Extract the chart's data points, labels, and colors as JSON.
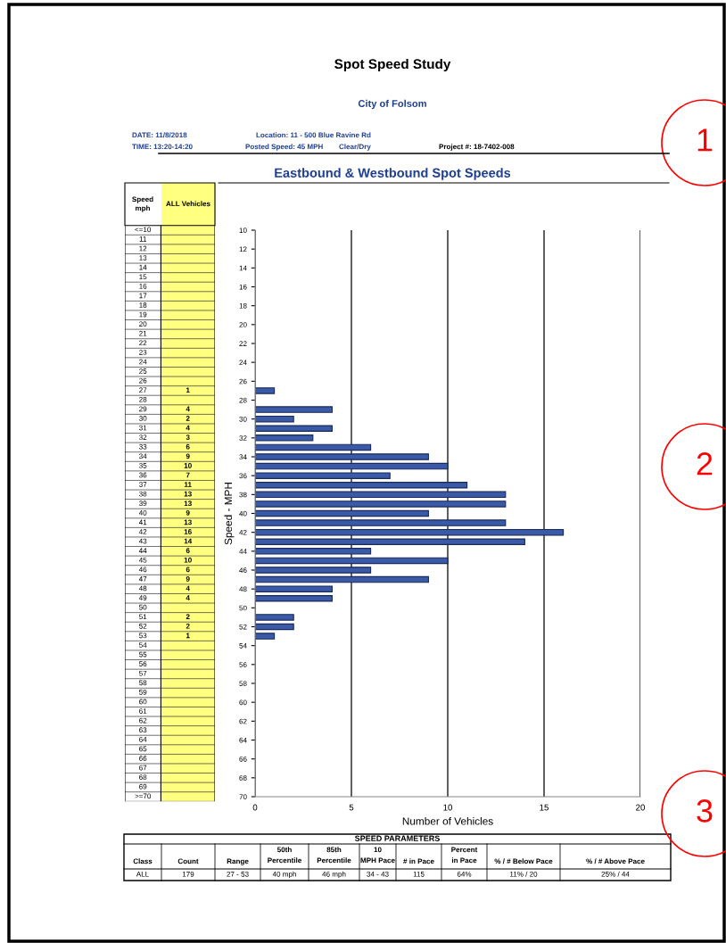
{
  "chart_data": {
    "type": "bar",
    "orientation": "horizontal",
    "title": "Spot Speed Study",
    "subtitle": "Eastbound & Westbound Spot Speeds",
    "xlabel": "Number of Vehicles",
    "ylabel": "Speed - MPH",
    "x": [
      27,
      28,
      29,
      30,
      31,
      32,
      33,
      34,
      35,
      36,
      37,
      38,
      39,
      40,
      41,
      42,
      43,
      44,
      45,
      46,
      47,
      48,
      49,
      50,
      51,
      52,
      53
    ],
    "values": [
      1,
      null,
      4,
      2,
      4,
      3,
      6,
      9,
      10,
      7,
      11,
      13,
      13,
      9,
      13,
      16,
      14,
      6,
      10,
      6,
      9,
      4,
      4,
      null,
      2,
      2,
      1
    ],
    "color": "#3a5aa8",
    "xlim": [
      0,
      20
    ],
    "xticks": [
      0,
      5,
      10,
      15,
      20
    ],
    "ylim": [
      70,
      10
    ],
    "yticks": [
      10,
      12,
      14,
      16,
      18,
      20,
      22,
      24,
      26,
      28,
      30,
      32,
      34,
      36,
      38,
      40,
      42,
      44,
      46,
      48,
      50,
      52,
      54,
      56,
      58,
      60,
      62,
      64,
      66,
      68,
      70
    ],
    "grid": "x",
    "annotations": [
      "City of Folsom",
      "DATE: 11/8/2018",
      "TIME: 13:20-14:20",
      "Location: 11 - 500 Blue Ravine Rd",
      "Posted Speed: 45 MPH",
      "Clear/Dry",
      "Project #: 18-7402-008",
      "Speed mph",
      "ALL Vehicles",
      "<=10",
      "11",
      "12",
      "13",
      "14",
      "15",
      "16",
      "17",
      "18",
      "19",
      "20",
      "21",
      "22",
      "23",
      "24",
      "25",
      "26",
      "27",
      "28",
      "29",
      "30",
      "31",
      "32",
      "33",
      "34",
      "35",
      "36",
      "37",
      "38",
      "39",
      "40",
      "41",
      "42",
      "43",
      "44",
      "45",
      "46",
      "47",
      "48",
      "49",
      "50",
      "51",
      "52",
      "53",
      "54",
      "55",
      "56",
      "57",
      "58",
      "59",
      "60",
      "61",
      "62",
      "63",
      "64",
      "65",
      "66",
      "67",
      "68",
      "69",
      ">=70",
      "SPEED PARAMETERS",
      "Class",
      "Count",
      "Range",
      "50th Percentile",
      "85th Percentile",
      "10 MPH Pace",
      "# in Pace",
      "Percent in Pace",
      "% / # Below Pace",
      "% / # Above Pace",
      "ALL",
      "179",
      "27 - 53",
      "40 mph",
      "46 mph",
      "34 - 43",
      "115",
      "64%",
      "11% / 20",
      "25% / 44",
      "1",
      "2",
      "3",
      "1",
      "4",
      "2",
      "4",
      "3",
      "6",
      "9",
      "10",
      "7",
      "11",
      "13",
      "13",
      "9",
      "13",
      "16",
      "14",
      "6",
      "10",
      "6",
      "9",
      "4",
      "4",
      "2",
      "2",
      "1"
    ]
  }
}
